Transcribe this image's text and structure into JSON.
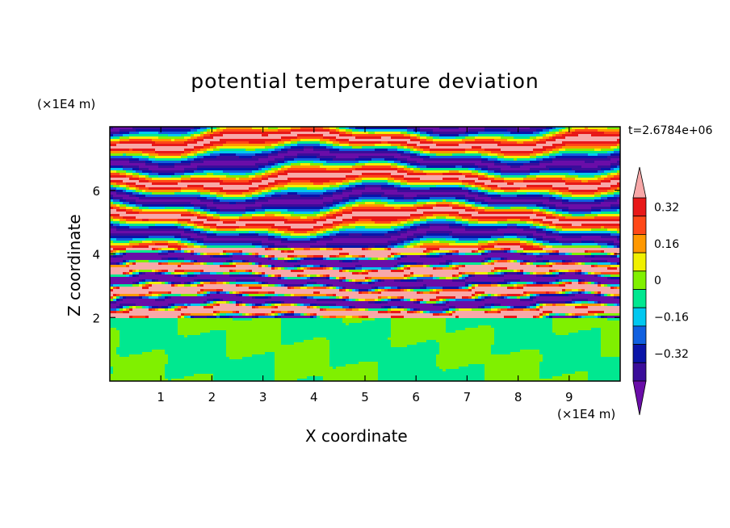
{
  "chart_data": {
    "type": "heatmap",
    "title": "potential temperature deviation",
    "xlabel": "X coordinate",
    "ylabel": "Z coordinate",
    "x_unit": "(×1E4 m)",
    "y_unit": "(×1E4 m)",
    "time_label": "t=2.6784e+06",
    "xlim": [
      0,
      10
    ],
    "ylim": [
      0,
      8
    ],
    "x_ticks": [
      1,
      2,
      3,
      4,
      5,
      6,
      7,
      8,
      9
    ],
    "y_ticks": [
      2,
      4,
      6
    ],
    "colorbar": {
      "levels": [
        -0.4,
        -0.32,
        -0.24,
        -0.16,
        -0.08,
        0,
        0.08,
        0.16,
        0.24,
        0.32,
        0.4
      ],
      "labels": [
        "0.32",
        "0.16",
        "0",
        "−0.16",
        "−0.32"
      ],
      "label_values": [
        0.32,
        0.16,
        0,
        -0.16,
        -0.32
      ],
      "colors": [
        "#6a0da8",
        "#3a0d9a",
        "#0a14a8",
        "#1060e0",
        "#00c8f0",
        "#00e890",
        "#80f000",
        "#f0f000",
        "#ff9800",
        "#ff4818",
        "#e81818",
        "#f8a8a8"
      ],
      "extend": "both"
    }
  }
}
